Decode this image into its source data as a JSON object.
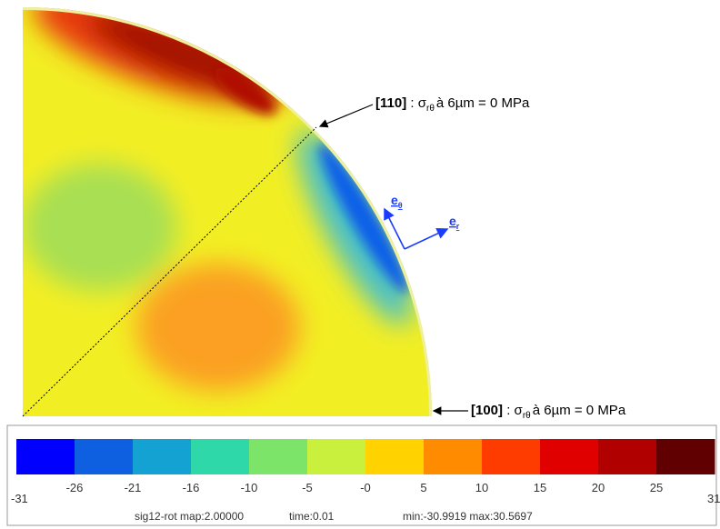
{
  "annotations": [
    {
      "label": "[110]",
      "prefix": ":",
      "symbol": "σ",
      "subscript": "rθ",
      "text": "à  6µm = 0 MPa"
    },
    {
      "label": "[100]",
      "prefix": ":",
      "symbol": "σ",
      "subscript": "rθ",
      "text": "à  6µm = 0 MPa"
    }
  ],
  "vectors": [
    {
      "symbol": "e",
      "subscript": "θ"
    },
    {
      "symbol": "e",
      "subscript": "r"
    }
  ],
  "colorbar": {
    "colors": [
      "#0000ff",
      "#0f60e0",
      "#14a2d2",
      "#2fd8a8",
      "#7de46a",
      "#c8f03c",
      "#ffd200",
      "#ff8c00",
      "#ff3c00",
      "#e00000",
      "#b00000",
      "#600000"
    ],
    "labels": [
      "-31",
      "-26",
      "-21",
      "-16",
      "-10",
      "-5",
      "-0",
      "5",
      "10",
      "15",
      "20",
      "25",
      "31"
    ],
    "footer": [
      "sig12-rot map:2.00000",
      "time:0.01",
      "min:-30.9919 max:30.5697"
    ]
  }
}
